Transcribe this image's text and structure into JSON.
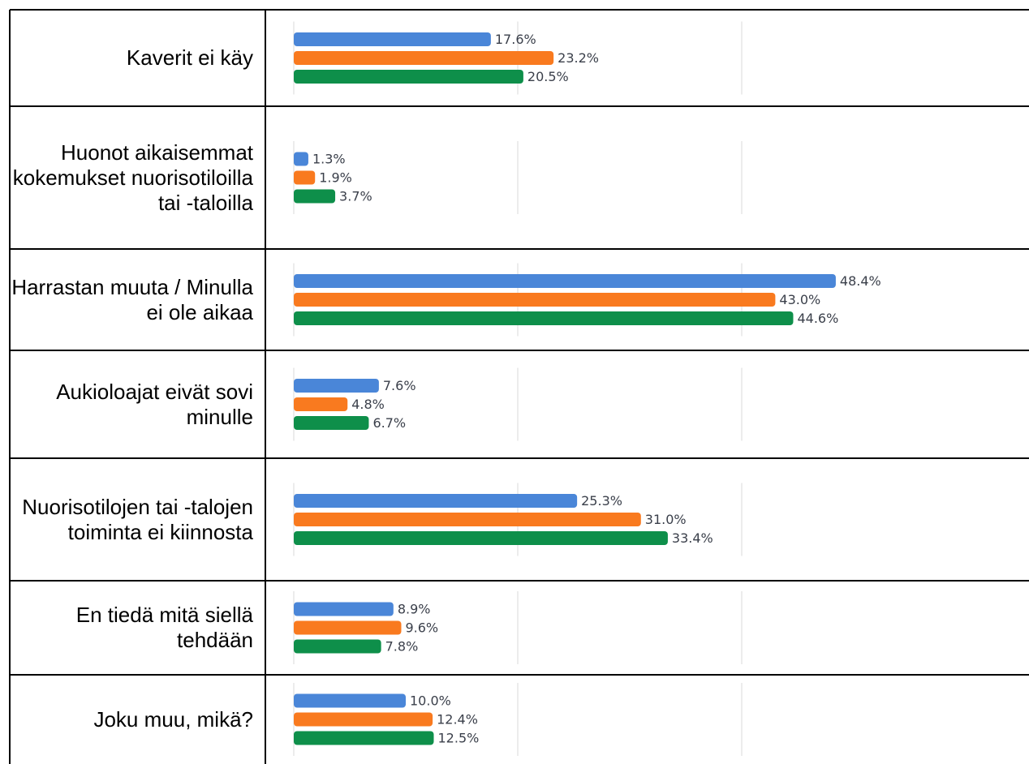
{
  "chart_data": {
    "type": "bar",
    "orientation": "horizontal",
    "categories": [
      "Kaverit ei käy",
      "Huonot aikaisemmat kokemukset nuorisotiloilla tai -taloilla",
      "Harrastan muuta / Minulla ei ole aikaa",
      "Aukioloajat eivät sovi minulle",
      "Nuorisotilojen tai -talojen toiminta ei kiinnosta",
      "En tiedä mitä siellä tehdään",
      "Joku muu, mikä?"
    ],
    "series": [
      {
        "color": "#4a86d8",
        "values": [
          17.6,
          1.3,
          48.4,
          7.6,
          25.3,
          8.9,
          10.0
        ],
        "value_labels": [
          "17.6%",
          "1.3%",
          "48.4%",
          "7.6%",
          "25.3%",
          "8.9%",
          "10.0%"
        ]
      },
      {
        "color": "#f97a1f",
        "values": [
          23.2,
          1.9,
          43.0,
          4.8,
          31.0,
          9.6,
          12.4
        ],
        "value_labels": [
          "23.2%",
          "1.9%",
          "43.0%",
          "4.8%",
          "31.0%",
          "9.6%",
          "12.4%"
        ]
      },
      {
        "color": "#0e8f4a",
        "values": [
          20.5,
          3.7,
          44.6,
          6.7,
          33.4,
          7.8,
          12.5
        ],
        "value_labels": [
          "20.5%",
          "3.7%",
          "44.6%",
          "6.7%",
          "33.4%",
          "7.8%",
          "12.5%"
        ]
      }
    ],
    "xlim": [
      0,
      60
    ],
    "xticks": [
      0,
      20,
      40
    ],
    "grid": true
  }
}
